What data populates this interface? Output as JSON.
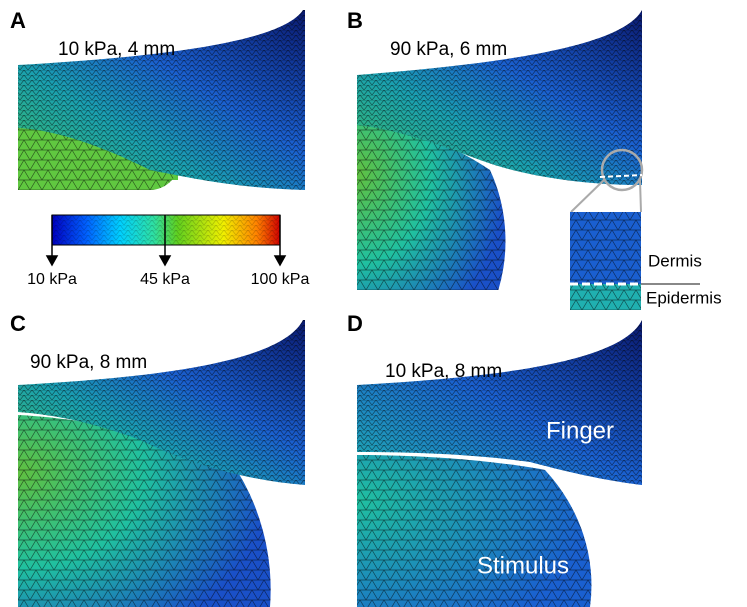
{
  "panels": [
    {
      "letter": "A",
      "label": "10 kPa, 4 mm"
    },
    {
      "letter": "B",
      "label": "90 kPa, 6 mm"
    },
    {
      "letter": "C",
      "label": "90 kPa, 8 mm"
    },
    {
      "letter": "D",
      "label": "10 kPa, 8 mm"
    }
  ],
  "colorbar": {
    "labels": [
      "10 kPa",
      "45 kPa",
      "100 kPa"
    ]
  },
  "inset": {
    "labels": [
      "Dermis",
      "Epidermis"
    ]
  },
  "annotations": [
    "Finger",
    "Stimulus"
  ]
}
